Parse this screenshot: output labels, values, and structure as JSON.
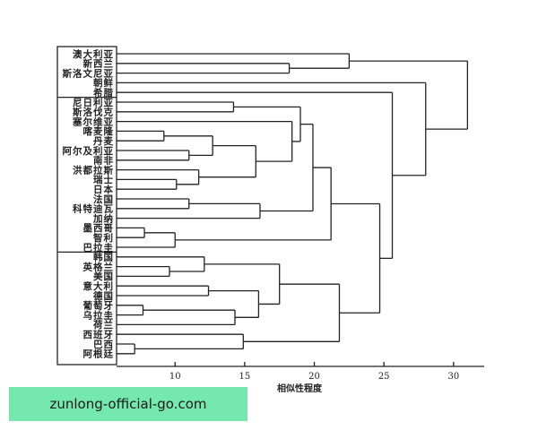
{
  "chart_data": {
    "type": "dendrogram",
    "xlabel": "相似性程度",
    "xlim": [
      5.8,
      32.2
    ],
    "xticks": [
      10,
      15,
      20,
      25,
      30
    ],
    "leaves": [
      "澳大利亚",
      "新西兰",
      "斯洛文尼亚",
      "朝鲜",
      "希腊",
      "尼日利亚",
      "斯洛伐克",
      "塞尔维亚",
      "喀麦隆",
      "丹麦",
      "阿尔及利亚",
      "南非",
      "洪都拉斯",
      "瑞士",
      "日本",
      "法国",
      "科特迪瓦",
      "加纳",
      "墨西哥",
      "智利",
      "巴拉圭",
      "韩国",
      "英格兰",
      "美国",
      "意大利",
      "德国",
      "葡萄牙",
      "乌拉圭",
      "荷兰",
      "西班牙",
      "巴西",
      "阿根廷"
    ],
    "groups": [
      [
        0,
        4
      ],
      [
        5,
        20
      ],
      [
        21,
        31
      ]
    ],
    "merges": [
      [
        1,
        2,
        18.2
      ],
      [
        0,
        32,
        22.5
      ],
      [
        5,
        6,
        14.2
      ],
      [
        8,
        9,
        9.2
      ],
      [
        10,
        11,
        11.0
      ],
      [
        35,
        36,
        12.7
      ],
      [
        13,
        14,
        10.1
      ],
      [
        12,
        38,
        11.7
      ],
      [
        37,
        39,
        15.8
      ],
      [
        7,
        40,
        18.4
      ],
      [
        34,
        41,
        19.0
      ],
      [
        15,
        16,
        11.0
      ],
      [
        43,
        17,
        16.1
      ],
      [
        42,
        44,
        19.9
      ],
      [
        18,
        19,
        7.8
      ],
      [
        46,
        20,
        10.0
      ],
      [
        45,
        47,
        21.2
      ],
      [
        22,
        23,
        9.6
      ],
      [
        21,
        49,
        12.1
      ],
      [
        24,
        25,
        12.4
      ],
      [
        26,
        27,
        7.7
      ],
      [
        52,
        28,
        14.3
      ],
      [
        51,
        53,
        16.0
      ],
      [
        50,
        54,
        17.5
      ],
      [
        30,
        31,
        7.1
      ],
      [
        29,
        56,
        14.9
      ],
      [
        55,
        57,
        21.8
      ],
      [
        48,
        58,
        24.7
      ],
      [
        4,
        59,
        25.6
      ],
      [
        3,
        60,
        28.0
      ],
      [
        33,
        61,
        31.0
      ]
    ],
    "line_color": "#222222"
  },
  "watermark": "zunlong-official-go.com"
}
